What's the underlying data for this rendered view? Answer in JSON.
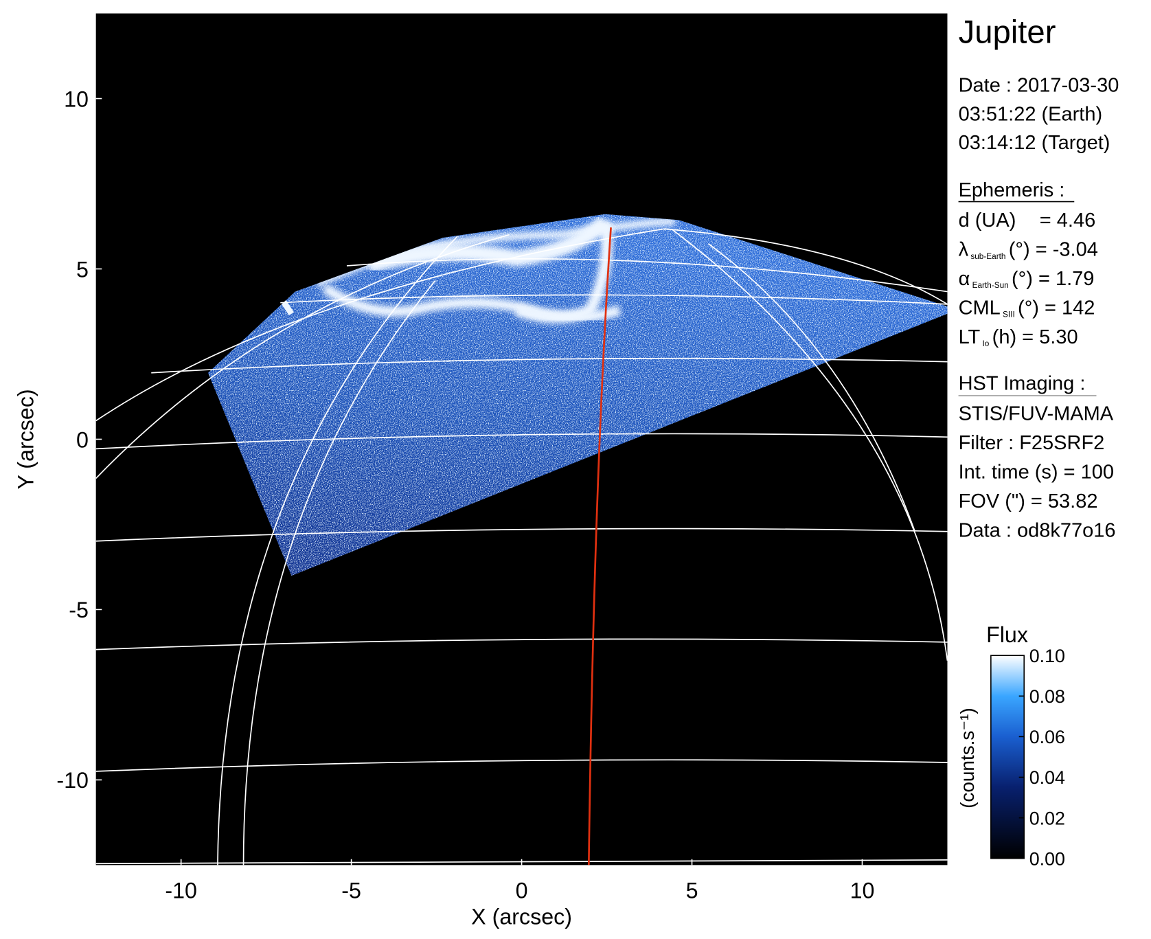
{
  "chart_data": {
    "type": "image",
    "title": "Jupiter",
    "xlabel": "X (arcsec)",
    "ylabel": "Y (arcsec)",
    "xlim": [
      -12.5,
      12.5
    ],
    "ylim": [
      -12.5,
      12.5
    ],
    "xticks": [
      -10,
      -5,
      0,
      5,
      10
    ],
    "yticks": [
      -10,
      -5,
      0,
      5,
      10
    ],
    "colorbar": {
      "label": "Flux",
      "unit": "(counts.s⁻¹)",
      "lim": [
        0,
        0.1
      ],
      "ticks": [
        {
          "value": 0,
          "label": "0.00"
        },
        {
          "value": 0.02,
          "label": "0.02"
        },
        {
          "value": 0.04,
          "label": "0.04"
        },
        {
          "value": 0.06,
          "label": "0.06"
        },
        {
          "value": 0.08,
          "label": "0.08"
        },
        {
          "value": 0.1,
          "label": "0.10"
        }
      ]
    },
    "info": {
      "date": [
        "Date : 2017-03-30",
        "03:51:22 (Earth)",
        "03:14:12 (Target)"
      ],
      "ephemeris": {
        "title": "Ephemeris :",
        "rows": [
          {
            "label": "d (UA)",
            "rest": "= 4.46"
          },
          {
            "label": "λ",
            "sub": "sub-Earth",
            "rest": "(°) = -3.04"
          },
          {
            "label": "α",
            "sub": "Earth-Sun",
            "rest": "(°) = 1.79"
          },
          {
            "label": "CML",
            "sub": "SIII",
            "rest": "(°) = 142"
          },
          {
            "label": "LT",
            "sub": "Io",
            "rest": "(h) = 5.30"
          }
        ]
      },
      "hst": {
        "title": "HST Imaging :",
        "rows": [
          "STIS/FUV-MAMA",
          "Filter : F25SRF2",
          "Int. time (s) = 100",
          "FOV (\") = 53.82",
          "Data : od8k77o16"
        ]
      }
    }
  }
}
